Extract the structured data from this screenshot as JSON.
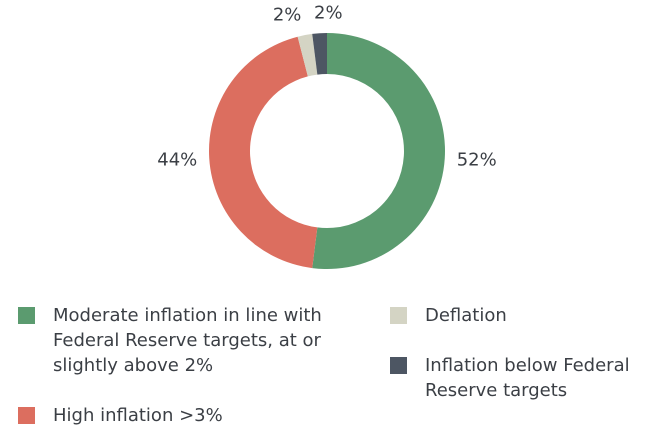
{
  "chart_data": {
    "type": "pie",
    "categories": [
      "Moderate inflation in line with Federal Reserve targets, at or slightly above 2%",
      "High inflation >3%",
      "Deflation",
      "Inflation below Federal Reserve targets"
    ],
    "values": [
      52,
      44,
      2,
      2
    ],
    "value_labels": [
      "52%",
      "44%",
      "2%",
      "2%"
    ],
    "colors": [
      "#5b9b6f",
      "#dc6e5f",
      "#d4d4c4",
      "#4d5663"
    ]
  }
}
